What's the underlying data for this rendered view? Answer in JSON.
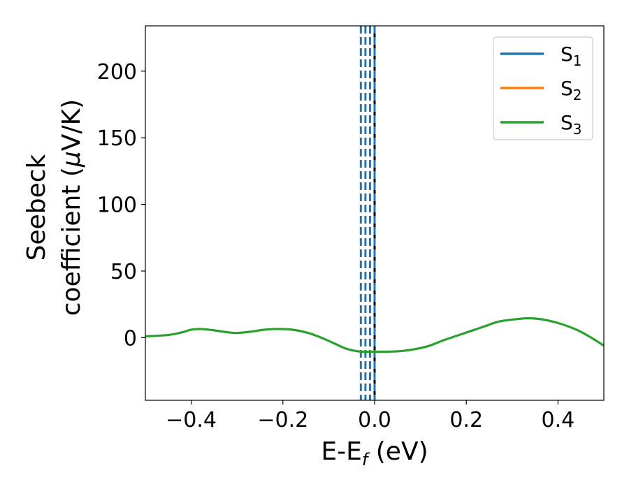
{
  "chart_data": {
    "type": "line",
    "xlabel": {
      "base": "E-E",
      "sub": "f",
      "rest": " (eV)"
    },
    "ylabel": {
      "line1": "Seebeck",
      "line2_pre": "coefficient  (",
      "mu": "μ",
      "line2_post": "V/K)"
    },
    "xlim": [
      -0.5,
      0.5
    ],
    "ylim": [
      -47,
      234
    ],
    "xticks": [
      -0.4,
      -0.2,
      0.0,
      0.2,
      0.4
    ],
    "xtick_labels": [
      "−0.4",
      "−0.2",
      "0.0",
      "0.2",
      "0.4"
    ],
    "yticks": [
      0,
      50,
      100,
      150,
      200
    ],
    "ytick_labels": [
      "0",
      "50",
      "100",
      "150",
      "200"
    ],
    "grid": false,
    "legend": {
      "position": "top-right",
      "entries": [
        {
          "base": "S",
          "sub": "1",
          "color": "#1f77b4"
        },
        {
          "base": "S",
          "sub": "2",
          "color": "#ff7f0e"
        },
        {
          "base": "S",
          "sub": "3",
          "color": "#2ca02c"
        }
      ]
    },
    "series": [
      {
        "color": "#2ca02c",
        "x": [
          -0.5,
          -0.45,
          -0.42,
          -0.4,
          -0.38,
          -0.35,
          -0.32,
          -0.3,
          -0.27,
          -0.24,
          -0.21,
          -0.18,
          -0.15,
          -0.12,
          -0.09,
          -0.06,
          -0.03,
          0.0,
          0.03,
          0.06,
          0.09,
          0.12,
          0.15,
          0.18,
          0.21,
          0.24,
          0.27,
          0.3,
          0.33,
          0.36,
          0.4,
          0.44,
          0.47,
          0.5
        ],
        "y": [
          1,
          2,
          4,
          6,
          6.5,
          5.5,
          4,
          3.5,
          4.5,
          6,
          6.5,
          6,
          4,
          0.5,
          -4,
          -8.5,
          -10.5,
          -10.5,
          -10.5,
          -10,
          -8.5,
          -6,
          -2,
          1.5,
          5,
          8.5,
          12,
          13.5,
          14.5,
          14,
          11,
          6,
          0.5,
          -6
        ]
      }
    ],
    "vlines": [
      {
        "x": -0.03,
        "style": "dashed",
        "color": "#1f77b4"
      },
      {
        "x": -0.02,
        "style": "dashed",
        "color": "#1f77b4"
      },
      {
        "x": -0.01,
        "style": "dashed",
        "color": "#1f77b4"
      },
      {
        "x": 0.0,
        "style": "solid",
        "color": "#000000"
      },
      {
        "x": 0.0,
        "style": "dashed",
        "color": "#1f77b4"
      }
    ]
  }
}
